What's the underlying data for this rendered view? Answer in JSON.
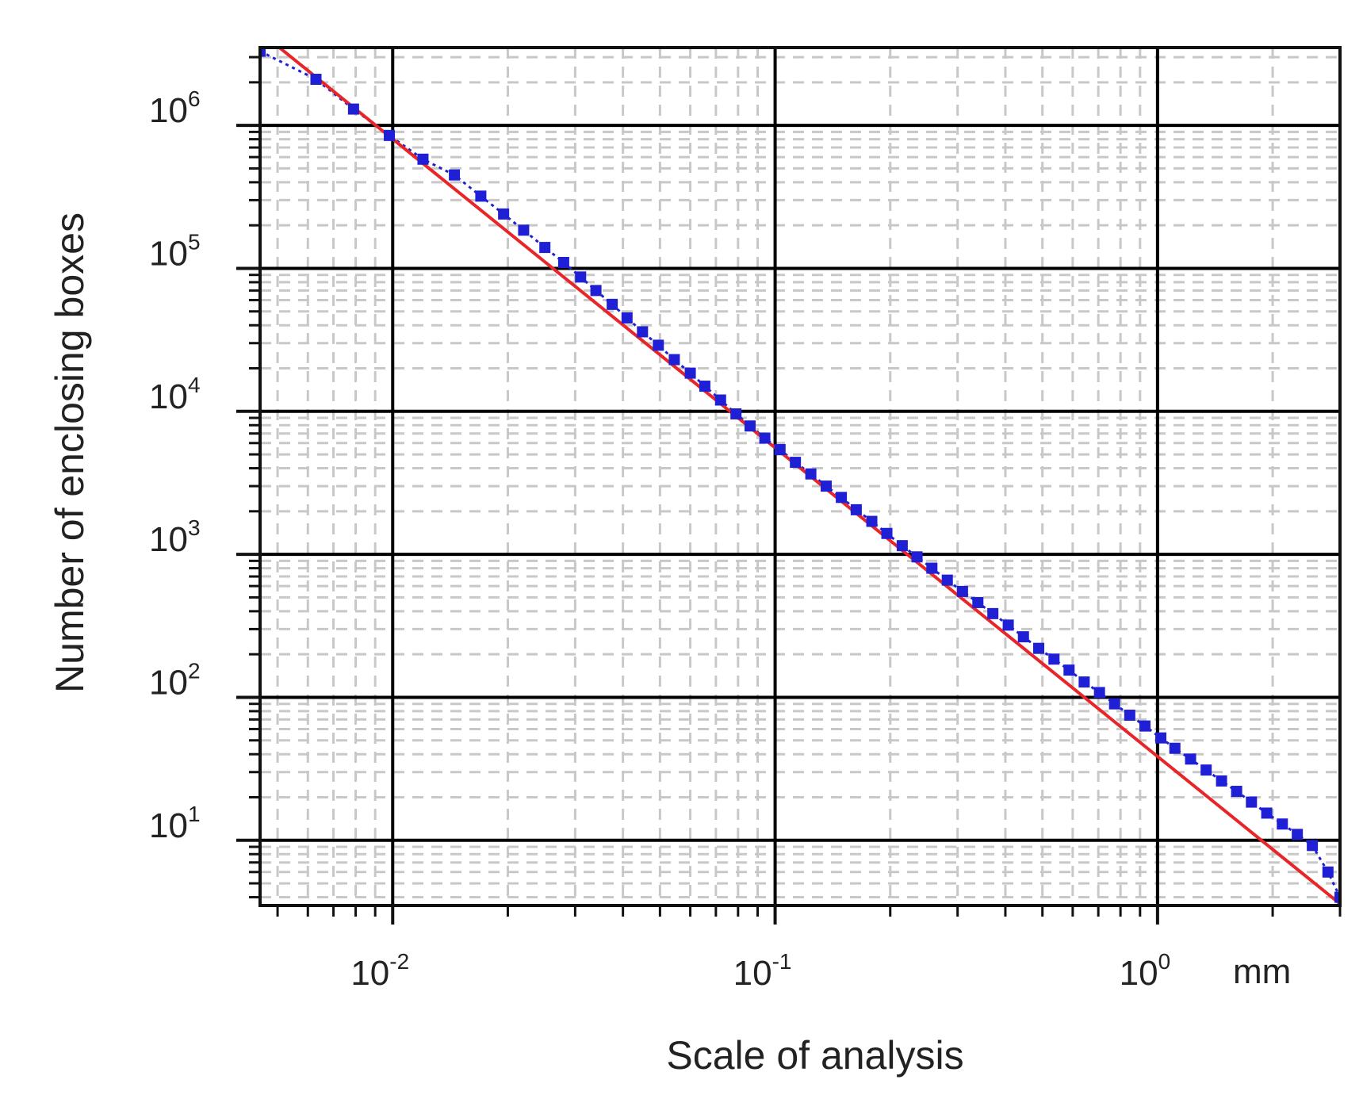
{
  "chart_data": {
    "type": "scatter",
    "title": "",
    "xlabel": "Scale of analysis",
    "ylabel": "Number of enclosing boxes",
    "x_unit": "mm",
    "x_scale": "log",
    "y_scale": "log",
    "xlim": [
      0.0045,
      3.0
    ],
    "ylim": [
      3.5,
      3500000
    ],
    "grid": true,
    "x_ticks": [
      {
        "value": 0.01,
        "base": "10",
        "exp": "-2"
      },
      {
        "value": 0.1,
        "base": "10",
        "exp": "-1"
      },
      {
        "value": 1,
        "base": "10",
        "exp": "0"
      }
    ],
    "y_ticks": [
      {
        "value": 10,
        "base": "10",
        "exp": "1"
      },
      {
        "value": 100,
        "base": "10",
        "exp": "2"
      },
      {
        "value": 1000,
        "base": "10",
        "exp": "3"
      },
      {
        "value": 10000,
        "base": "10",
        "exp": "4"
      },
      {
        "value": 100000,
        "base": "10",
        "exp": "5"
      },
      {
        "value": 1000000,
        "base": "10",
        "exp": "6"
      }
    ],
    "colors": {
      "points": "#1f1fd6",
      "fit": "#e8262a",
      "major_grid": "#000000",
      "minor_grid": "#c8c8c8"
    },
    "series": [
      {
        "type": "scatter",
        "x": [
          0.0045,
          0.0063,
          0.0079,
          0.0098,
          0.012,
          0.0145,
          0.017,
          0.0195,
          0.022,
          0.025,
          0.028,
          0.031,
          0.034,
          0.0375,
          0.041,
          0.045,
          0.0495,
          0.0545,
          0.06,
          0.0655,
          0.072,
          0.079,
          0.086,
          0.094,
          0.103,
          0.113,
          0.124,
          0.136,
          0.149,
          0.163,
          0.179,
          0.196,
          0.215,
          0.235,
          0.257,
          0.282,
          0.309,
          0.339,
          0.371,
          0.407,
          0.446,
          0.489,
          0.536,
          0.587,
          0.643,
          0.705,
          0.772,
          0.846,
          0.927,
          1.02,
          1.11,
          1.22,
          1.34,
          1.47,
          1.61,
          1.76,
          1.93,
          2.12,
          2.32,
          2.54,
          2.79,
          3.0
        ],
        "y": [
          3300000,
          2100000,
          1300000,
          850000,
          580000,
          450000,
          320000,
          240000,
          185000,
          140000,
          110000,
          87000,
          70000,
          56000,
          45000,
          36000,
          29000,
          23000,
          18500,
          15000,
          12000,
          9600,
          7900,
          6500,
          5400,
          4400,
          3650,
          3000,
          2500,
          2050,
          1700,
          1400,
          1150,
          960,
          800,
          660,
          550,
          460,
          385,
          320,
          265,
          220,
          185,
          155,
          128,
          108,
          90,
          75,
          63,
          52,
          44,
          37,
          31,
          26,
          22,
          18.5,
          15.5,
          13,
          11,
          9.2,
          6,
          4
        ]
      },
      {
        "type": "line",
        "x": [
          0.0045,
          3.0
        ],
        "y": [
          4500000,
          3.6
        ]
      }
    ]
  }
}
